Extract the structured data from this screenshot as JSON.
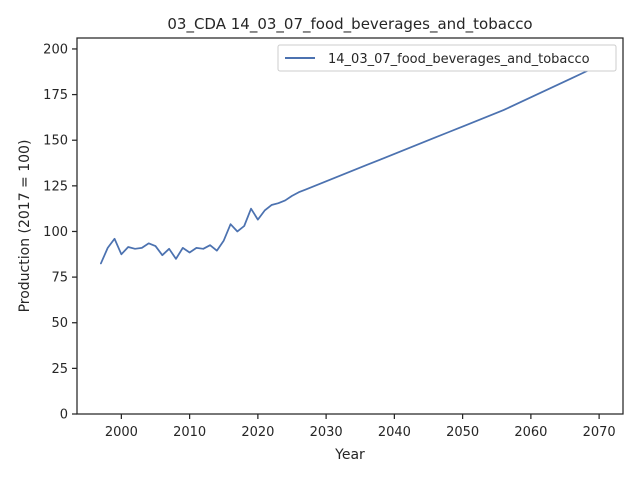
{
  "chart_data": {
    "type": "line",
    "title": "03_CDA 14_03_07_food_beverages_and_tobacco",
    "xlabel": "Year",
    "ylabel": "Production (2017 = 100)",
    "xlim": [
      1993.5,
      2073.5
    ],
    "ylim": [
      0,
      206
    ],
    "xticks": [
      2000,
      2010,
      2020,
      2030,
      2040,
      2050,
      2060,
      2070
    ],
    "yticks": [
      0,
      25,
      50,
      75,
      100,
      125,
      150,
      175,
      200
    ],
    "grid": false,
    "legend_position": "top-right",
    "colors": {
      "series": "#4c72b0",
      "axes": "#262626"
    },
    "series": [
      {
        "name": "14_03_07_food_beverages_and_tobacco",
        "x": [
          1997,
          1998,
          1999,
          2000,
          2001,
          2002,
          2003,
          2004,
          2005,
          2006,
          2007,
          2008,
          2009,
          2010,
          2011,
          2012,
          2013,
          2014,
          2015,
          2016,
          2017,
          2018,
          2019,
          2020,
          2021,
          2022,
          2023,
          2024,
          2025,
          2026,
          2027,
          2028,
          2029,
          2030,
          2032,
          2034,
          2036,
          2038,
          2040,
          2042,
          2044,
          2046,
          2048,
          2050,
          2052,
          2054,
          2056,
          2058,
          2060,
          2062,
          2064,
          2066,
          2068,
          2070
        ],
        "values": [
          82.5,
          91.0,
          96.0,
          87.5,
          91.5,
          90.5,
          91.0,
          93.5,
          92.0,
          87.0,
          90.5,
          85.0,
          91.0,
          88.5,
          91.0,
          90.5,
          92.5,
          89.5,
          95.0,
          104.0,
          100.0,
          103.0,
          112.5,
          106.5,
          111.5,
          114.5,
          115.5,
          117.0,
          119.5,
          121.5,
          123.0,
          124.5,
          126.0,
          127.5,
          130.5,
          133.5,
          136.5,
          139.5,
          142.5,
          145.5,
          148.5,
          151.5,
          154.5,
          157.5,
          160.5,
          163.5,
          166.5,
          170.0,
          173.5,
          177.0,
          180.5,
          184.0,
          187.5,
          191.0
        ]
      }
    ]
  }
}
